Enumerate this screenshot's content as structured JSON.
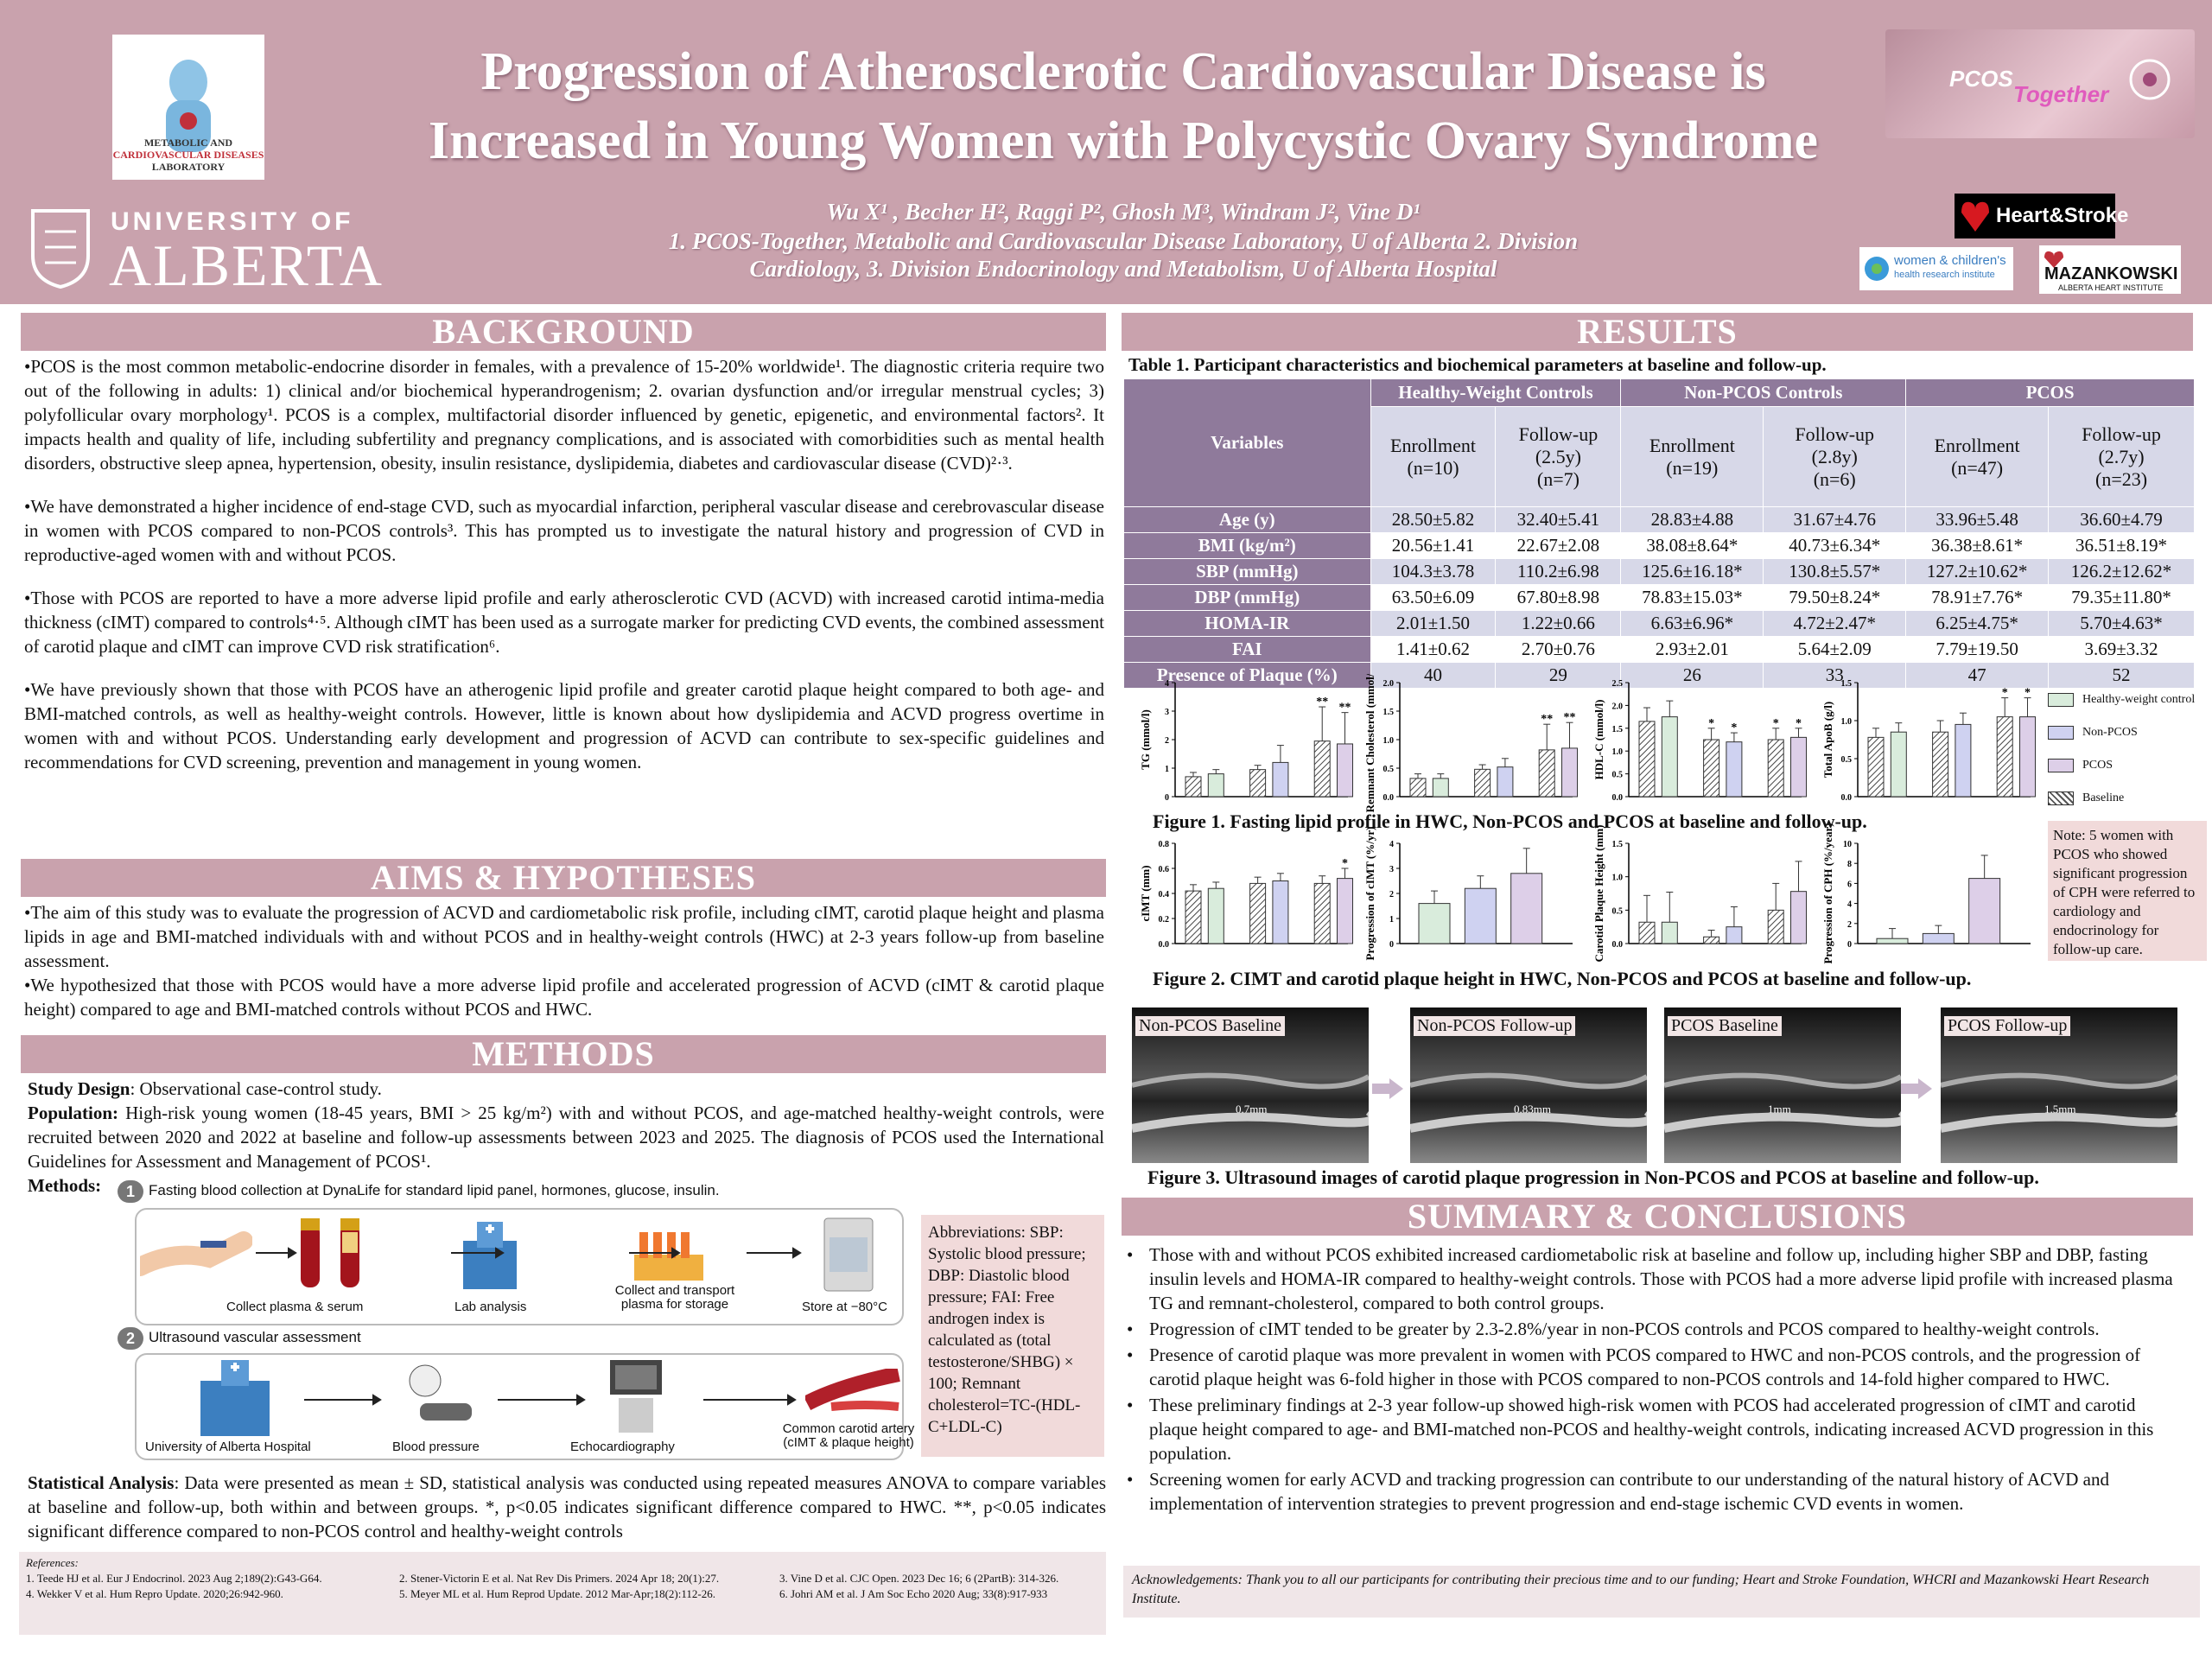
{
  "header": {
    "title_line1": "Progression of Atherosclerotic Cardiovascular Disease is",
    "title_line2": "Increased in Young Women with Polycystic Ovary Syndrome",
    "authors": "Wu X¹ , Becher H², Raggi P², Ghosh M³, Windram J², Vine D¹",
    "affil1": "1. PCOS-Together, Metabolic and Cardiovascular Disease Laboratory, U of Alberta  2. Division",
    "affil2": "Cardiology, 3. Division Endocrinology and Metabolism, U of Alberta Hospital",
    "lab_logo_line1": "METABOLIC AND",
    "lab_logo_line2": "CARDIOVASCULAR DISEASES",
    "lab_logo_line3": "LABORATORY",
    "uofa_line1": "UNIVERSITY OF",
    "uofa_line2": "ALBERTA",
    "pcos_logo1": "PCOS",
    "pcos_logo2": "Together",
    "heartstroke": "Heart&Stroke",
    "wchri1": "women & children's",
    "wchri2": "health research institute",
    "maz1": "MAZANKOWSKI",
    "maz2": "ALBERTA HEART INSTITUTE"
  },
  "background": {
    "heading": "BACKGROUND",
    "p1": "•PCOS is the most common metabolic-endocrine disorder in females, with a prevalence of 15-20% worldwide¹. The diagnostic criteria require two out of the following in adults: 1) clinical and/or biochemical hyperandrogenism; 2. ovarian dysfunction and/or irregular menstrual cycles; 3) polyfollicular ovary morphology¹. PCOS is a complex, multifactorial disorder influenced by genetic, epigenetic, and environmental factors². It impacts health and quality of life, including subfertility and pregnancy complications, and is associated with comorbidities such as mental health disorders, obstructive sleep apnea, hypertension, obesity, insulin resistance, dyslipidemia, diabetes and cardiovascular disease (CVD)²·³.",
    "p2": "•We have demonstrated a higher incidence of end-stage CVD, such as myocardial infarction, peripheral vascular disease and cerebrovascular disease in women with PCOS compared to non-PCOS controls³. This has prompted us to investigate the natural history and progression of CVD in reproductive-aged women with and without PCOS.",
    "p3": "•Those with PCOS are reported to have a more adverse lipid profile and early atherosclerotic CVD (ACVD) with increased carotid intima-media thickness (cIMT) compared to controls⁴·⁵. Although cIMT has been used as a surrogate marker for predicting CVD events, the combined assessment of carotid plaque and cIMT can improve CVD risk stratification⁶.",
    "p4": "•We have previously shown that those with PCOS have an atherogenic lipid profile and greater carotid plaque height compared to both age- and BMI-matched controls, as well as healthy-weight controls. However, little is known about how dyslipidemia and ACVD progress overtime in women with and without PCOS. Understanding early development and progression of ACVD can contribute to  sex-specific guidelines and recommendations for CVD screening, prevention and management in young women."
  },
  "aims": {
    "heading": "AIMS & HYPOTHESES",
    "p1": "•The aim of this study was to evaluate the progression of ACVD and cardiometabolic risk profile, including cIMT, carotid plaque height and plasma lipids in age and BMI-matched individuals with and without PCOS and in healthy-weight controls (HWC) at 2-3 years follow-up from baseline assessment.",
    "p2": "•We hypothesized that those with PCOS would have a more adverse lipid profile and accelerated progression of ACVD (cIMT & carotid plaque height) compared to age and BMI-matched controls without PCOS and HWC."
  },
  "methods": {
    "heading": "METHODS",
    "design_label": "Study Design",
    "design_text": ": Observational case-control study.",
    "pop_label": "Population:",
    "pop_text": " High-risk young women (18-45 years, BMI > 25 kg/m²) with and without PCOS, and age-matched healthy-weight controls, were recruited between 2020 and 2022 at baseline and follow-up assessments between 2023 and 2025. The diagnosis of PCOS used the International Guidelines for Assessment and Management of PCOS¹.",
    "methods_label": "Methods:",
    "step1_num": "1",
    "step1_title": "Fasting blood collection at DynaLife for standard lipid panel, hormones, glucose, insulin.",
    "step1_a": "Collect plasma & serum",
    "step1_b": "Lab analysis",
    "step1_c1": "Collect and transport",
    "step1_c2": "plasma for storage",
    "step1_d": "Store at −80°C",
    "step2_num": "2",
    "step2_title": "Ultrasound vascular assessment",
    "step2_a": "University of Alberta Hospital",
    "step2_b": "Blood pressure",
    "step2_c": "Echocardiography",
    "step2_d1": "Common carotid artery",
    "step2_d2": "(cIMT & plaque height)",
    "abbrev": "Abbreviations: SBP: Systolic blood pressure; DBP: Diastolic blood pressure; FAI: Free androgen index is calculated as (total testosterone/SHBG) × 100; Remnant cholesterol=TC-(HDL-C+LDL-C)",
    "stat_label": "Statistical Analysis",
    "stat_text": ": Data were presented as mean ± SD, statistical analysis was conducted using repeated measures ANOVA to compare variables at baseline and follow-up, both within and between groups. *, p<0.05 indicates significant difference compared to HWC. **, p<0.05 indicates significant difference compared to non-PCOS control and healthy-weight controls"
  },
  "references": {
    "label": "References:",
    "r1": "1. Teede HJ et al. Eur J Endocrinol. 2023 Aug 2;189(2):G43-G64.",
    "r2": "2. Stener-Victorin E et al. Nat Rev Dis Primers. 2024 Apr 18; 20(1):27.",
    "r3": "3. Vine D et al. CJC Open. 2023 Dec 16; 6 (2PartB): 314-326.",
    "r4": "4. Wekker V et al. Hum Repro Update. 2020;26:942-960.",
    "r5": "5. Meyer ML et al. Hum Reprod Update. 2012 Mar-Apr;18(2):112-26.",
    "r6": "6. Johri AM et al. J Am Soc Echo 2020 Aug; 33(8):917-933"
  },
  "results": {
    "heading": "RESULTS",
    "table_caption": "Table 1. Participant characteristics and biochemical parameters at baseline and follow-up.",
    "col_variables": "Variables",
    "groups": [
      "Healthy-Weight Controls",
      "Non-PCOS Controls",
      "PCOS"
    ],
    "subheaders": [
      [
        "Enrollment",
        "(n=10)",
        ""
      ],
      [
        "Follow-up",
        "(2.5y)",
        "(n=7)"
      ],
      [
        "Enrollment",
        "(n=19)",
        ""
      ],
      [
        "Follow-up",
        "(2.8y)",
        "(n=6)"
      ],
      [
        "Enrollment",
        "(n=47)",
        ""
      ],
      [
        "Follow-up",
        "(2.7y)",
        "(n=23)"
      ]
    ],
    "rows": [
      {
        "label": "Age (y)",
        "values": [
          "28.50±5.82",
          "32.40±5.41",
          "28.83±4.88",
          "31.67±4.76",
          "33.96±5.48",
          "36.60±4.79"
        ]
      },
      {
        "label": "BMI (kg/m²)",
        "values": [
          "20.56±1.41",
          "22.67±2.08",
          "38.08±8.64*",
          "40.73±6.34*",
          "36.38±8.61*",
          "36.51±8.19*"
        ]
      },
      {
        "label": "SBP (mmHg)",
        "values": [
          "104.3±3.78",
          "110.2±6.98",
          "125.6±16.18*",
          "130.8±5.57*",
          "127.2±10.62*",
          "126.2±12.62*"
        ]
      },
      {
        "label": "DBP (mmHg)",
        "values": [
          "63.50±6.09",
          "67.80±8.98",
          "78.83±15.03*",
          "79.50±8.24*",
          "78.91±7.76*",
          "79.35±11.80*"
        ]
      },
      {
        "label": "HOMA-IR",
        "values": [
          "2.01±1.50",
          "1.22±0.66",
          "6.63±6.96*",
          "4.72±2.47*",
          "6.25±4.75*",
          "5.70±4.63*"
        ]
      },
      {
        "label": "FAI",
        "values": [
          "1.41±0.62",
          "2.70±0.76",
          "2.93±2.01",
          "5.64±2.09",
          "7.79±19.50",
          "3.69±3.32"
        ]
      },
      {
        "label": "Presence of Plaque (%)",
        "values": [
          "40",
          "29",
          "26",
          "33",
          "47",
          "52"
        ]
      }
    ],
    "fig1_caption": "Figure 1. Fasting lipid profile in HWC, Non-PCOS and PCOS at baseline and follow-up.",
    "fig2_caption": "Figure 2. CIMT and carotid plaque height in HWC, Non-PCOS and PCOS at baseline and follow-up.",
    "fig3_caption": "Figure 3. Ultrasound images of carotid plaque progression in Non-PCOS and PCOS at baseline and follow-up.",
    "legend": [
      "Healthy-weight control",
      "Non-PCOS",
      "PCOS",
      "Baseline"
    ],
    "note": "Note: 5 women with PCOS who showed significant progression of CPH were referred to cardiology and endocrinology for follow-up care.",
    "us_images": [
      {
        "label": "Non-PCOS Baseline",
        "measure": "0.7mm"
      },
      {
        "label": "Non-PCOS Follow-up",
        "measure": "0.83mm"
      },
      {
        "label": "PCOS Baseline",
        "measure": "1mm"
      },
      {
        "label": "PCOS Follow-up",
        "measure": "1.5mm"
      }
    ]
  },
  "summary": {
    "heading": "SUMMARY & CONCLUSIONS",
    "items": [
      "Those with and without PCOS exhibited increased cardiometabolic risk at baseline and follow up, including higher SBP and DBP, fasting insulin levels and HOMA-IR compared to healthy-weight controls. Those with PCOS had a more adverse lipid profile with increased plasma TG and remnant-cholesterol, compared to both control groups.",
      "Progression of cIMT tended to be greater by 2.3-2.8%/year in non-PCOS controls and PCOS compared to healthy-weight controls.",
      "Presence of carotid plaque was more prevalent in women with PCOS compared to HWC and non-PCOS controls, and the progression of carotid plaque height was 6-fold higher in those with PCOS compared to non-PCOS controls and 14-fold higher compared to HWC.",
      "These preliminary findings at 2-3 year follow-up showed high-risk women with PCOS had accelerated progression of cIMT and carotid plaque height compared to age- and BMI-matched non-PCOS and healthy-weight controls, indicating increased ACVD progression in this population.",
      "Screening women for early ACVD and tracking progression can contribute to our understanding of the natural history of ACVD and implementation of intervention strategies to prevent progression and end-stage ischemic CVD events in women."
    ],
    "ack": "Acknowledgements: Thank you to all our participants for contributing their precious time and to our funding; Heart and Stroke Foundation, WHCRI and Mazankowski Heart Research Institute."
  },
  "colors": {
    "hwc": "#d9ecdc",
    "nonpcos": "#cfd2f1",
    "pcos": "#ddcfe8",
    "header": "#c9a2ad",
    "table_header": "#8f7a9b"
  },
  "chart_data": [
    {
      "type": "bar",
      "ylabel": "TG (mmol/l)",
      "ylim": [
        0,
        4
      ],
      "yticks": [
        "0",
        "1",
        "2",
        "3",
        "4"
      ],
      "series": [
        {
          "values": [
            0.7,
            0.8,
            0.95,
            1.2,
            1.95,
            1.85
          ],
          "err": [
            0.15,
            0.15,
            0.15,
            0.6,
            1.2,
            1.1
          ]
        }
      ],
      "annotations": [
        "",
        "",
        "",
        "",
        "**",
        "**"
      ]
    },
    {
      "type": "bar",
      "ylabel": "Remnant Cholesterol (mmol/l)",
      "ylim": [
        0,
        2.0
      ],
      "yticks": [
        "0.0",
        "0.5",
        "1.0",
        "1.5",
        "2.0"
      ],
      "series": [
        {
          "values": [
            0.32,
            0.32,
            0.48,
            0.52,
            0.82,
            0.85
          ],
          "err": [
            0.08,
            0.08,
            0.08,
            0.15,
            0.45,
            0.45
          ]
        }
      ],
      "annotations": [
        "",
        "",
        "",
        "",
        "**",
        "**"
      ]
    },
    {
      "type": "bar",
      "ylabel": "HDL-C (mmol/l)",
      "ylim": [
        0,
        2.5
      ],
      "yticks": [
        "0.0",
        "0.5",
        "1.0",
        "1.5",
        "2.0",
        "2.5"
      ],
      "series": [
        {
          "values": [
            1.65,
            1.75,
            1.25,
            1.2,
            1.25,
            1.3
          ],
          "err": [
            0.3,
            0.35,
            0.25,
            0.2,
            0.25,
            0.2
          ]
        }
      ],
      "annotations": [
        "",
        "",
        "*",
        "*",
        "*",
        "*"
      ]
    },
    {
      "type": "bar",
      "ylabel": "Total ApoB (g/l)",
      "ylim": [
        0,
        1.5
      ],
      "yticks": [
        "0.0",
        "0.5",
        "1.0",
        "1.5"
      ],
      "series": [
        {
          "values": [
            0.78,
            0.85,
            0.85,
            0.95,
            1.05,
            1.05
          ],
          "err": [
            0.12,
            0.12,
            0.15,
            0.15,
            0.25,
            0.25
          ]
        }
      ],
      "annotations": [
        "",
        "",
        "",
        "",
        "*",
        "*"
      ]
    },
    {
      "type": "bar",
      "ylabel": "cIMT (mm)",
      "ylim": [
        0,
        0.8
      ],
      "yticks": [
        "0.0",
        "0.2",
        "0.4",
        "0.6",
        "0.8"
      ],
      "series": [
        {
          "values": [
            0.42,
            0.44,
            0.48,
            0.5,
            0.48,
            0.52
          ],
          "err": [
            0.05,
            0.05,
            0.05,
            0.06,
            0.06,
            0.08
          ]
        }
      ],
      "annotations": [
        "",
        "",
        "",
        "",
        "",
        "*"
      ]
    },
    {
      "type": "bar",
      "ylabel": "Progression of cIMT (%/yr)",
      "ylim": [
        0,
        4
      ],
      "yticks": [
        "0",
        "1",
        "2",
        "3",
        "4"
      ],
      "series": [
        {
          "values": [
            1.6,
            2.2,
            2.8
          ],
          "err": [
            0.5,
            0.5,
            1.0
          ]
        }
      ],
      "annotations": [
        "",
        "",
        ""
      ]
    },
    {
      "type": "bar",
      "ylabel": "Carotid Plaque Height (mm)",
      "ylim": [
        0,
        1.5
      ],
      "yticks": [
        "0.0",
        "0.5",
        "1.0",
        "1.5"
      ],
      "series": [
        {
          "values": [
            0.32,
            0.32,
            0.1,
            0.25,
            0.5,
            0.78
          ],
          "err": [
            0.4,
            0.45,
            0.1,
            0.3,
            0.4,
            0.45
          ]
        }
      ],
      "annotations": [
        "",
        "",
        "",
        "",
        "",
        ""
      ]
    },
    {
      "type": "bar",
      "ylabel": "Progression of CPH (%/year)",
      "ylim": [
        0,
        10
      ],
      "yticks": [
        "0",
        "2",
        "4",
        "6",
        "8",
        "10"
      ],
      "series": [
        {
          "values": [
            0.5,
            1.0,
            6.5
          ],
          "err": [
            1.0,
            0.8,
            2.3
          ]
        }
      ],
      "annotations": [
        "",
        "",
        ""
      ]
    }
  ]
}
